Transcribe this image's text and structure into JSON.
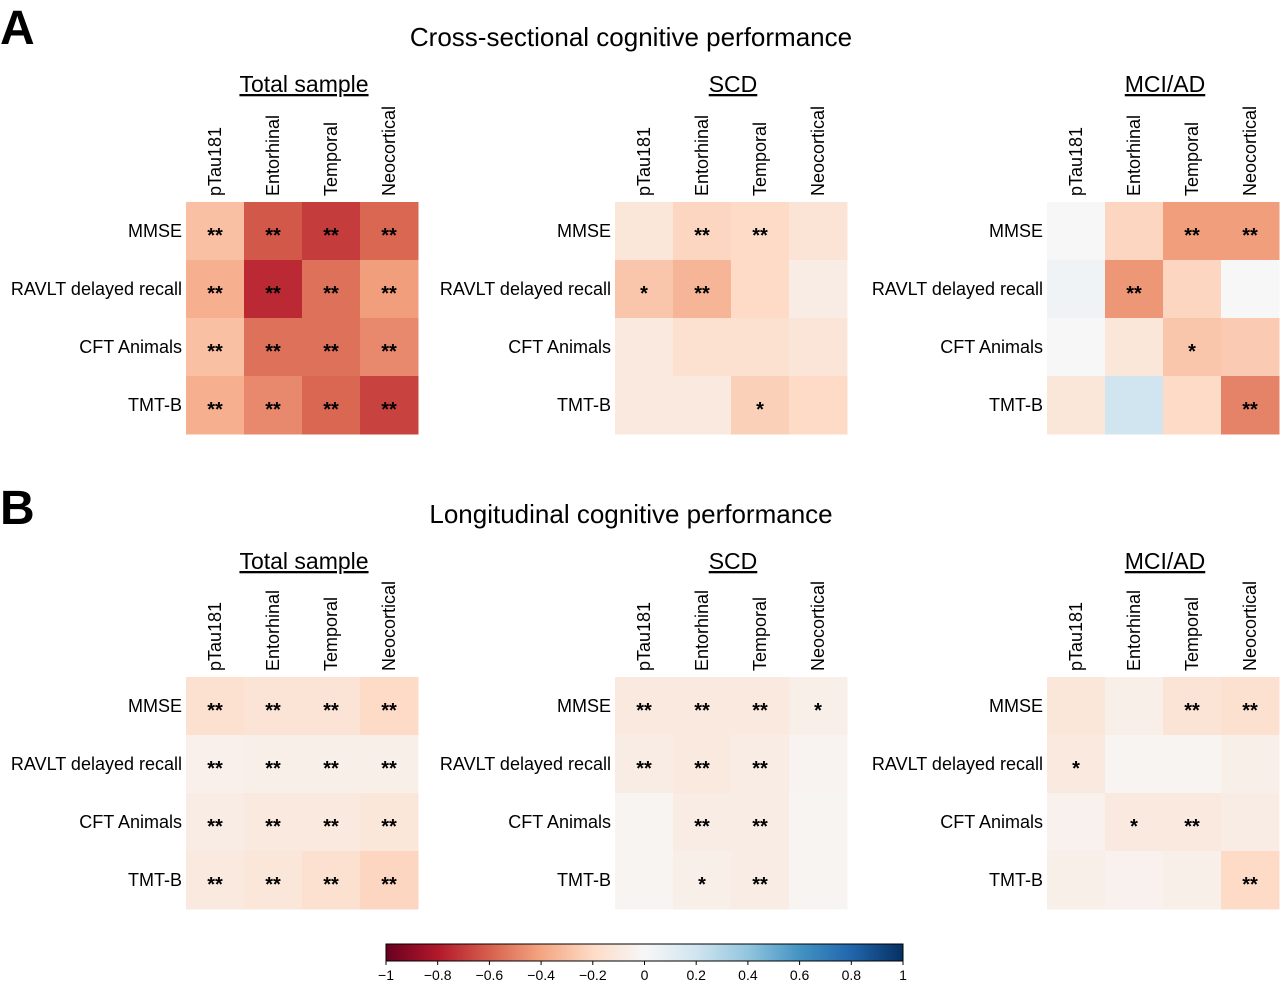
{
  "chart_data": {
    "type": "heatmap",
    "sections": [
      {
        "letter": "A",
        "title": "Cross-sectional cognitive performance",
        "heatmaps": [
          {
            "title": "Total sample",
            "columns": [
              "pTau181",
              "Entorhinal",
              "Temporal",
              "Neocortical"
            ],
            "rows": [
              "MMSE",
              "RAVLT delayed recall",
              "CFT Animals",
              "TMT-B"
            ],
            "values": [
              [
                -0.3,
                -0.62,
                -0.7,
                -0.58
              ],
              [
                -0.36,
                -0.75,
                -0.55,
                -0.42
              ],
              [
                -0.3,
                -0.55,
                -0.55,
                -0.48
              ],
              [
                -0.36,
                -0.48,
                -0.58,
                -0.68
              ]
            ],
            "stars": [
              [
                "**",
                "**",
                "**",
                "**"
              ],
              [
                "**",
                "**",
                "**",
                "**"
              ],
              [
                "**",
                "**",
                "**",
                "**"
              ],
              [
                "**",
                "**",
                "**",
                "**"
              ]
            ]
          },
          {
            "title": "SCD",
            "columns": [
              "pTau181",
              "Entorhinal",
              "Temporal",
              "Neocortical"
            ],
            "rows": [
              "MMSE",
              "RAVLT delayed recall",
              "CFT Animals",
              "TMT-B"
            ],
            "values": [
              [
                -0.12,
                -0.22,
                -0.2,
                -0.14
              ],
              [
                -0.28,
                -0.34,
                -0.2,
                -0.08
              ],
              [
                -0.1,
                -0.16,
                -0.16,
                -0.13
              ],
              [
                -0.1,
                -0.1,
                -0.24,
                -0.2
              ]
            ],
            "stars": [
              [
                "",
                "**",
                "**",
                ""
              ],
              [
                "*",
                "**",
                "",
                ""
              ],
              [
                "",
                "",
                "",
                ""
              ],
              [
                "",
                "",
                "*",
                ""
              ]
            ]
          },
          {
            "title": "MCI/AD",
            "columns": [
              "pTau181",
              "Entorhinal",
              "Temporal",
              "Neocortical"
            ],
            "rows": [
              "MMSE",
              "RAVLT delayed recall",
              "CFT Animals",
              "TMT-B"
            ],
            "values": [
              [
                0.0,
                -0.22,
                -0.42,
                -0.42
              ],
              [
                0.04,
                -0.44,
                -0.22,
                0.0
              ],
              [
                0.0,
                -0.12,
                -0.28,
                -0.26
              ],
              [
                -0.12,
                0.2,
                -0.2,
                -0.5
              ]
            ],
            "stars": [
              [
                "",
                "",
                "**",
                "**"
              ],
              [
                "",
                "**",
                "",
                ""
              ],
              [
                "",
                "",
                "*",
                ""
              ],
              [
                "",
                "",
                "",
                "**"
              ]
            ]
          }
        ]
      },
      {
        "letter": "B",
        "title": "Longitudinal cognitive performance",
        "heatmaps": [
          {
            "title": "Total sample",
            "columns": [
              "pTau181",
              "Entorhinal",
              "Temporal",
              "Neocortical"
            ],
            "rows": [
              "MMSE",
              "RAVLT delayed recall",
              "CFT Animals",
              "TMT-B"
            ],
            "values": [
              [
                -0.16,
                -0.14,
                -0.14,
                -0.2
              ],
              [
                -0.05,
                -0.06,
                -0.06,
                -0.06
              ],
              [
                -0.08,
                -0.1,
                -0.1,
                -0.12
              ],
              [
                -0.1,
                -0.12,
                -0.16,
                -0.22
              ]
            ],
            "stars": [
              [
                "**",
                "**",
                "**",
                "**"
              ],
              [
                "**",
                "**",
                "**",
                "**"
              ],
              [
                "**",
                "**",
                "**",
                "**"
              ],
              [
                "**",
                "**",
                "**",
                "**"
              ]
            ]
          },
          {
            "title": "SCD",
            "columns": [
              "pTau181",
              "Entorhinal",
              "Temporal",
              "Neocortical"
            ],
            "rows": [
              "MMSE",
              "RAVLT delayed recall",
              "CFT Animals",
              "TMT-B"
            ],
            "values": [
              [
                -0.1,
                -0.1,
                -0.1,
                -0.06
              ],
              [
                -0.08,
                -0.1,
                -0.08,
                -0.03
              ],
              [
                -0.02,
                -0.08,
                -0.08,
                -0.02
              ],
              [
                -0.02,
                -0.06,
                -0.08,
                -0.02
              ]
            ],
            "stars": [
              [
                "**",
                "**",
                "**",
                "*"
              ],
              [
                "**",
                "**",
                "**",
                ""
              ],
              [
                "",
                "**",
                "**",
                ""
              ],
              [
                "",
                "*",
                "**",
                ""
              ]
            ]
          },
          {
            "title": "MCI/AD",
            "columns": [
              "pTau181",
              "Entorhinal",
              "Temporal",
              "Neocortical"
            ],
            "rows": [
              "MMSE",
              "RAVLT delayed recall",
              "CFT Animals",
              "TMT-B"
            ],
            "values": [
              [
                -0.12,
                -0.06,
                -0.14,
                -0.16
              ],
              [
                -0.1,
                -0.02,
                -0.02,
                -0.06
              ],
              [
                -0.04,
                -0.1,
                -0.1,
                -0.08
              ],
              [
                -0.06,
                -0.04,
                -0.06,
                -0.2
              ]
            ],
            "stars": [
              [
                "",
                "",
                "**",
                "**"
              ],
              [
                "*",
                "",
                "",
                ""
              ],
              [
                "",
                "*",
                "**",
                ""
              ],
              [
                "",
                "",
                "",
                "**"
              ]
            ]
          }
        ]
      }
    ],
    "colorbar": {
      "cmap": "RdBu",
      "range": [
        -1,
        1
      ],
      "tick_labels": [
        "−1",
        "−0.8",
        "−0.6",
        "−0.4",
        "−0.2",
        "0",
        "0.2",
        "0.4",
        "0.6",
        "0.8",
        "1"
      ]
    }
  }
}
